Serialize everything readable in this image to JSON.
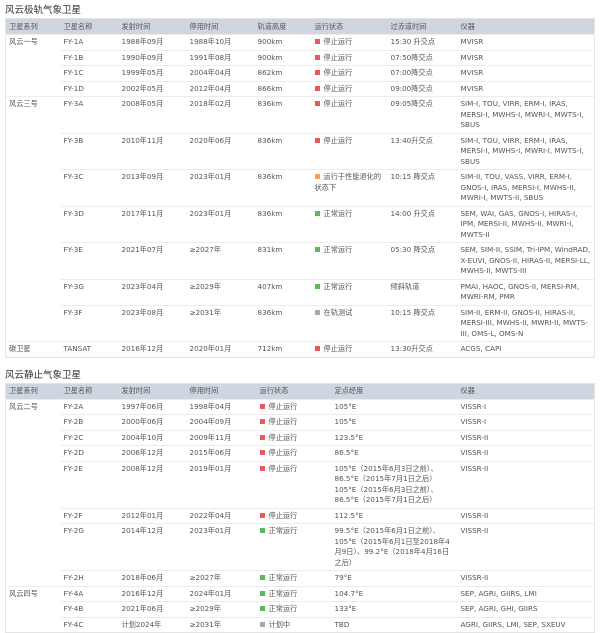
{
  "polar": {
    "title": "风云极轨气象卫星",
    "headers": [
      "卫星系列",
      "卫星名称",
      "发射时间",
      "停用时间",
      "轨道高度",
      "运行状态",
      "过赤道时间",
      "仪器"
    ],
    "groups": [
      {
        "series": "风云一号",
        "rows": [
          [
            "FY-1A",
            "1988年09月",
            "1988年10月",
            "900km",
            "stopped",
            "停止运行",
            "15:30 升交点",
            "MVISR"
          ],
          [
            "FY-1B",
            "1990年09月",
            "1991年08月",
            "900km",
            "stopped",
            "停止运行",
            "07:50降交点",
            "MVISR"
          ],
          [
            "FY-1C",
            "1999年05月",
            "2004年04月",
            "862km",
            "stopped",
            "停止运行",
            "07:00降交点",
            "MVISR"
          ],
          [
            "FY-1D",
            "2002年05月",
            "2012年04月",
            "866km",
            "stopped",
            "停止运行",
            "09:00降交点",
            "MVISR"
          ]
        ]
      },
      {
        "series": "风云三号",
        "rows": [
          [
            "FY-3A",
            "2008年05月",
            "2018年02月",
            "836km",
            "stopped",
            "停止运行",
            "09:05降交点",
            "SIM-I, TOU, VIRR, ERM-I, IRAS, MERSI-I, MWHS-I, MWRI-I, MWTS-I, SBUS"
          ],
          [
            "FY-3B",
            "2010年11月",
            "2020年06月",
            "836km",
            "stopped",
            "停止运行",
            "13:40升交点",
            "SIM-I, TOU, VIRR, ERM-I, IRAS, MERSI-I, MWHS-I, MWRI-I, MWTS-I, SBUS"
          ],
          [
            "FY-3C",
            "2013年09月",
            "2023年01月",
            "836km",
            "degraded",
            "运行于性能退化的状态下",
            "10:15 降交点",
            "SIM-II, TOU, VASS, VIRR, ERM-I, GNOS-I, IRAS, MERSI-I, MWHS-II, MWRI-I, MWTS-II, SBUS"
          ],
          [
            "FY-3D",
            "2017年11月",
            "2023年01月",
            "836km",
            "normal",
            "正常运行",
            "14:00 升交点",
            "SEM, WAI, GAS, GNOS-I, HIRAS-I, IPM, MERSI-II, MWHS-II, MWRI-I, MWTS-II"
          ],
          [
            "FY-3E",
            "2021年07月",
            "≥2027年",
            "831km",
            "normal",
            "正常运行",
            "05:30 降交点",
            "SEM, SIM-II, SSIM, Tri-IPM, WindRAD, X-EUVI, GNOS-II, HIRAS-II, MERSI-LL, MWHS-II, MWTS-III"
          ],
          [
            "FY-3G",
            "2023年04月",
            "≥2029年",
            "407km",
            "normal",
            "正常运行",
            "倾斜轨道",
            "PMAI, HAOC, GNOS-II, MERSI-RM, MWRI-RM, PMR"
          ],
          [
            "FY-3F",
            "2023年08月",
            "≥2031年",
            "836km",
            "testing",
            "在轨测试",
            "10:15 降交点",
            "SIM-II, ERM-II, GNOS-II, HIRAS-II, MERSI-III, MWHS-II, MWRI-II, MWTS-III, OMS-L, OMS-N"
          ]
        ]
      },
      {
        "series": "碳卫星",
        "rows": [
          [
            "TANSAT",
            "2016年12月",
            "2020年01月",
            "712km",
            "stopped",
            "停止运行",
            "13:30升交点",
            "ACGS, CAPI"
          ]
        ]
      }
    ]
  },
  "geo": {
    "title": "风云静止气象卫星",
    "headers": [
      "卫星系列",
      "卫星名称",
      "发射时间",
      "停用时间",
      "运行状态",
      "定点经度",
      "仪器"
    ],
    "groups": [
      {
        "series": "风云二号",
        "rows": [
          [
            "FY-2A",
            "1997年06月",
            "1998年04月",
            "stopped",
            "停止运行",
            "105°E",
            "VISSR-I"
          ],
          [
            "FY-2B",
            "2000年06月",
            "2004年09月",
            "stopped",
            "停止运行",
            "105°E",
            "VISSR-I"
          ],
          [
            "FY-2C",
            "2004年10月",
            "2009年11月",
            "stopped",
            "停止运行",
            "123.5°E",
            "VISSR-II"
          ],
          [
            "FY-2D",
            "2006年12月",
            "2015年06月",
            "stopped",
            "停止运行",
            "86.5°E",
            "VISSR-II"
          ],
          [
            "FY-2E",
            "2008年12月",
            "2019年01月",
            "stopped",
            "停止运行",
            "105°E（2015年6月3日之前）、86.5°E（2015年7月1日之后）105°E（2015年6月3日之前）、86.5°E（2015年7月1日之后）",
            "VISSR-II"
          ],
          [
            "FY-2F",
            "2012年01月",
            "2022年04月",
            "stopped",
            "停止运行",
            "112.5°E",
            "VISSR-II"
          ],
          [
            "FY-2G",
            "2014年12月",
            "2023年01月",
            "normal",
            "正常运行",
            "99.5°E（2015年6月1日之前）、105°E（2015年6月1日至2018年4月9日）、99.2°E（2018年4月16日之后）",
            "VISSR-II"
          ],
          [
            "FY-2H",
            "2018年06月",
            "≥2027年",
            "normal",
            "正常运行",
            "79°E",
            "VISSR-II"
          ]
        ]
      },
      {
        "series": "风云四号",
        "rows": [
          [
            "FY-4A",
            "2016年12月",
            "2024年01月",
            "normal",
            "正常运行",
            "104.7°E",
            "SEP, AGRI, GIIRS, LMI"
          ],
          [
            "FY-4B",
            "2021年06月",
            "≥2029年",
            "normal",
            "正常运行",
            "133°E",
            "SEP, AGRI, GHI, GIIRS"
          ],
          [
            "FY-4C",
            "计划2024年",
            "≥2031年",
            "planned",
            "计划中",
            "TBD",
            "AGRI, GIIRS, LMI, SEP, SXEUV"
          ]
        ]
      }
    ]
  },
  "status_colors": {
    "stopped": "#e8585a",
    "degraded": "#f0a060",
    "normal": "#5cb85c",
    "testing": "#aaaaaa",
    "planned": "#aaaaaa"
  }
}
